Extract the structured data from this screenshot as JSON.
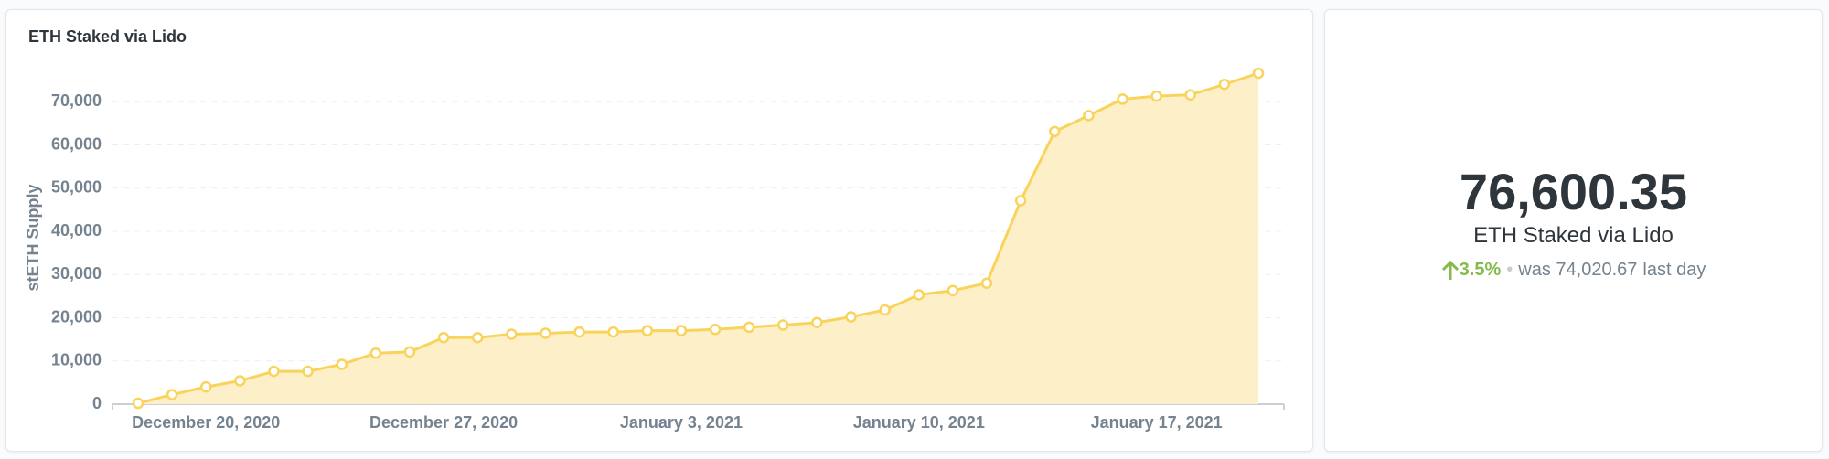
{
  "chart_data": {
    "type": "area",
    "title": "ETH Staked via Lido",
    "y_label": "stETH Supply",
    "categories": [
      null,
      null,
      "December 20, 2020",
      null,
      null,
      null,
      null,
      null,
      null,
      "December 27, 2020",
      null,
      null,
      null,
      null,
      null,
      null,
      "January 3, 2021",
      null,
      null,
      null,
      null,
      null,
      null,
      "January 10, 2021",
      null,
      null,
      null,
      null,
      null,
      null,
      "January 17, 2021",
      null,
      null,
      null
    ],
    "values": [
      200,
      2200,
      4000,
      5400,
      7600,
      7600,
      9200,
      11800,
      12100,
      15400,
      15400,
      16200,
      16400,
      16700,
      16700,
      17000,
      17000,
      17300,
      17800,
      18300,
      18900,
      20200,
      21800,
      25300,
      26300,
      28000,
      47100,
      63100,
      66800,
      70600,
      71300,
      71600,
      74020.67,
      76600.35
    ],
    "color": "#f9d45c",
    "fill_color": "#fdf0c8",
    "ylim": [
      0,
      80000
    ],
    "yticks": [
      0,
      {
        "value": 10000,
        "label": "10,000"
      },
      {
        "value": 20000,
        "label": "20,000"
      },
      {
        "value": 30000,
        "label": "30,000"
      },
      {
        "value": 40000,
        "label": "40,000"
      },
      {
        "value": 50000,
        "label": "50,000"
      },
      {
        "value": 60000,
        "label": "60,000"
      },
      {
        "value": 70000,
        "label": "70,000"
      }
    ],
    "grid": true
  },
  "summary": {
    "value": "76,600.35",
    "title": "ETH Staked via Lido",
    "change": "3.5%",
    "previous": "was 74,020.67",
    "period": "last day"
  }
}
